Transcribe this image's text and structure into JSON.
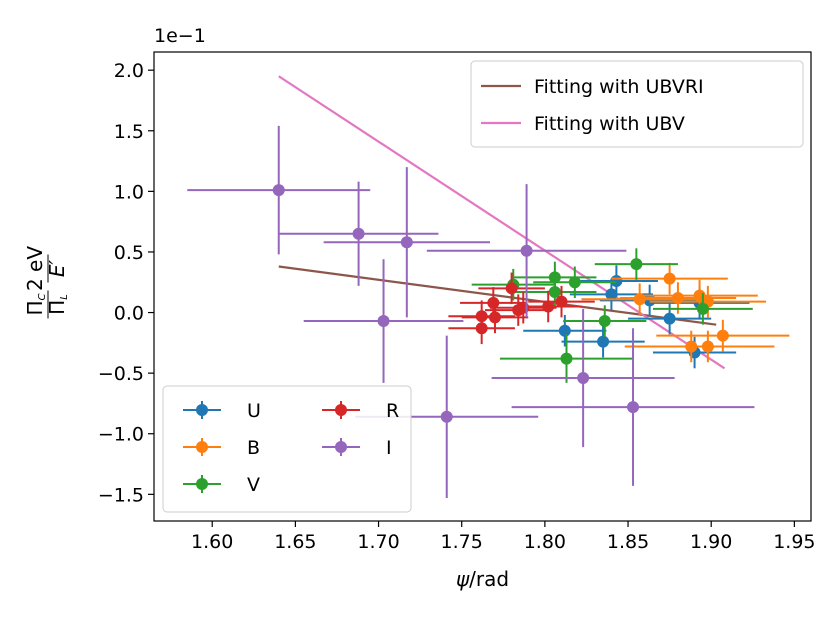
{
  "chart_data": {
    "type": "scatter",
    "xlabel": "ψ/rad",
    "ylabel": "Π_C/Π_L · 2 eV/E′",
    "ylabel_parts": {
      "num1": "Π",
      "sub1": "C",
      "den1": "Π",
      "sub2": "L",
      "num2": "2 eV",
      "den2": "E′"
    },
    "offset_text": "1e−1",
    "xlim": [
      1.565,
      1.96
    ],
    "ylim": [
      -1.72,
      2.15
    ],
    "xticks": [
      1.6,
      1.65,
      1.7,
      1.75,
      1.8,
      1.85,
      1.9,
      1.95
    ],
    "xtick_labels": [
      "1.60",
      "1.65",
      "1.70",
      "1.75",
      "1.80",
      "1.85",
      "1.90",
      "1.95"
    ],
    "yticks": [
      -1.5,
      -1.0,
      -0.5,
      0.0,
      0.5,
      1.0,
      1.5,
      2.0
    ],
    "ytick_labels": [
      "−1.5",
      "−1.0",
      "−0.5",
      "0.0",
      "0.5",
      "1.0",
      "1.5",
      "2.0"
    ],
    "series": [
      {
        "name": "U",
        "color": "#1f77b4",
        "points": [
          [
            1.843,
            0.26,
            0.025,
            0.13
          ],
          [
            1.84,
            0.15,
            0.025,
            0.13
          ],
          [
            1.863,
            0.1,
            0.03,
            0.13
          ],
          [
            1.835,
            -0.24,
            0.025,
            0.13
          ],
          [
            1.812,
            -0.15,
            0.025,
            0.13
          ],
          [
            1.875,
            -0.05,
            0.025,
            0.13
          ],
          [
            1.89,
            -0.33,
            0.025,
            0.13
          ],
          [
            1.893,
            0.08,
            0.03,
            0.13
          ]
        ]
      },
      {
        "name": "B",
        "color": "#ff7f0e",
        "points": [
          [
            1.875,
            0.28,
            0.035,
            0.13
          ],
          [
            1.857,
            0.11,
            0.035,
            0.13
          ],
          [
            1.88,
            0.12,
            0.035,
            0.13
          ],
          [
            1.893,
            0.14,
            0.035,
            0.13
          ],
          [
            1.898,
            0.09,
            0.035,
            0.13
          ],
          [
            1.907,
            -0.19,
            0.04,
            0.13
          ],
          [
            1.888,
            -0.28,
            0.04,
            0.13
          ],
          [
            1.898,
            -0.28,
            0.04,
            0.13
          ]
        ]
      },
      {
        "name": "V",
        "color": "#2ca02c",
        "points": [
          [
            1.806,
            0.29,
            0.025,
            0.13
          ],
          [
            1.818,
            0.25,
            0.025,
            0.13
          ],
          [
            1.781,
            0.23,
            0.025,
            0.13
          ],
          [
            1.806,
            0.17,
            0.025,
            0.13
          ],
          [
            1.855,
            0.4,
            0.025,
            0.13
          ],
          [
            1.895,
            0.03,
            0.03,
            0.13
          ],
          [
            1.836,
            -0.07,
            0.025,
            0.13
          ],
          [
            1.813,
            -0.38,
            0.04,
            0.2
          ]
        ]
      },
      {
        "name": "R",
        "color": "#d62728",
        "points": [
          [
            1.78,
            0.2,
            0.02,
            0.13
          ],
          [
            1.81,
            0.09,
            0.02,
            0.13
          ],
          [
            1.769,
            0.08,
            0.02,
            0.13
          ],
          [
            1.787,
            0.04,
            0.02,
            0.13
          ],
          [
            1.784,
            0.02,
            0.02,
            0.13
          ],
          [
            1.802,
            0.05,
            0.02,
            0.13
          ],
          [
            1.762,
            -0.03,
            0.02,
            0.13
          ],
          [
            1.77,
            -0.04,
            0.02,
            0.13
          ],
          [
            1.762,
            -0.13,
            0.02,
            0.13
          ]
        ]
      },
      {
        "name": "I",
        "color": "#9467bd",
        "points": [
          [
            1.64,
            1.01,
            0.055,
            0.53
          ],
          [
            1.688,
            0.65,
            0.048,
            0.43
          ],
          [
            1.717,
            0.58,
            0.05,
            0.62
          ],
          [
            1.789,
            0.51,
            0.06,
            0.55
          ],
          [
            1.703,
            -0.07,
            0.048,
            0.51
          ],
          [
            1.823,
            -0.54,
            0.055,
            0.57
          ],
          [
            1.741,
            -0.86,
            0.055,
            0.67
          ],
          [
            1.853,
            -0.78,
            0.073,
            0.65
          ]
        ]
      }
    ],
    "fit_lines": [
      {
        "name": "Fitting with UBVRI",
        "color": "#8c564b",
        "x": [
          1.64,
          1.903
        ],
        "y": [
          0.38,
          -0.1
        ]
      },
      {
        "name": "Fitting with UBV",
        "color": "#e377c2",
        "x": [
          1.64,
          1.908
        ],
        "y": [
          1.95,
          -0.46
        ]
      }
    ],
    "legends": {
      "fits": "upper right",
      "bands": "lower left",
      "band_columns": 2
    },
    "grid": false
  }
}
